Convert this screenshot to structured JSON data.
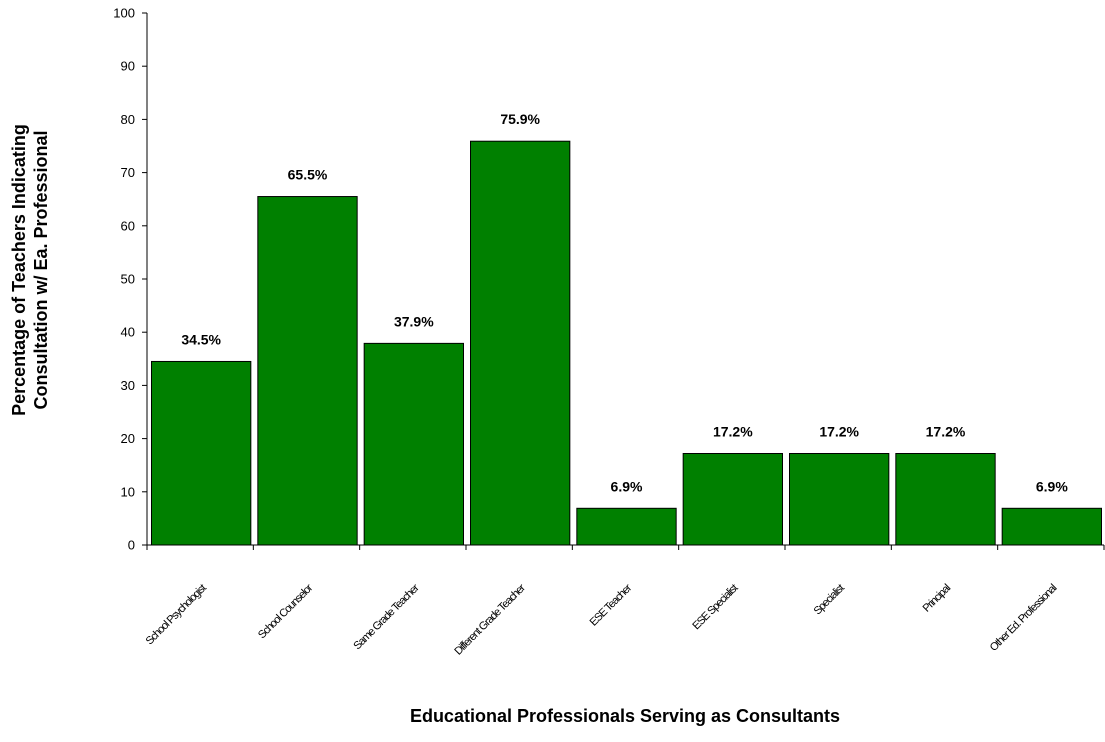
{
  "chart_data": {
    "type": "bar",
    "ylabel_lines": [
      "Percentage of Teachers Indicating",
      "Consultation w/ Ea. Professional"
    ],
    "xlabel": "Educational Professionals Serving as Consultants",
    "categories": [
      "School Psychologist",
      "School Counselor",
      "Same Grade Teacher",
      "Different Grade Teacher",
      "ESE Teacher",
      "ESE Specialist",
      "Specialist",
      "Principal",
      "Other Ed. Professional"
    ],
    "values": [
      34.5,
      65.5,
      37.9,
      75.9,
      6.9,
      17.2,
      17.2,
      17.2,
      6.9
    ],
    "data_labels": [
      "34.5%",
      "65.5%",
      "37.9%",
      "75.9%",
      "6.9%",
      "17.2%",
      "17.2%",
      "17.2%",
      "6.9%"
    ],
    "ylim": [
      0,
      100
    ],
    "yticks": [
      0,
      10,
      20,
      30,
      40,
      50,
      60,
      70,
      80,
      90,
      100
    ],
    "bar_color": "#008000",
    "grid": false,
    "legend": "none"
  }
}
